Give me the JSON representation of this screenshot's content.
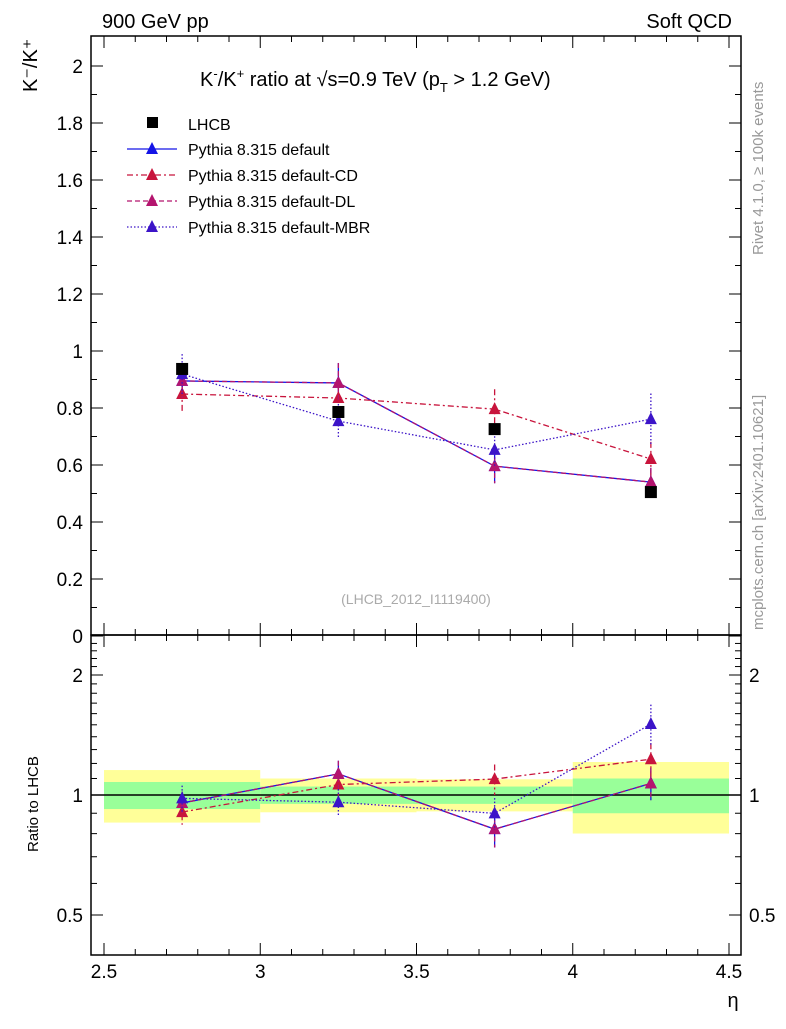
{
  "header": {
    "left": "900 GeV pp",
    "right": "Soft QCD"
  },
  "side": {
    "top": "Rivet 4.1.0, ≥ 100k events",
    "bottom": "mcplots.cern.ch [arXiv:2401.10621]"
  },
  "chart_data": [
    {
      "type": "line",
      "title": "K⁻/K⁺ ratio at √s=0.9 TeV (pT > 1.2 GeV)",
      "title_parts": {
        "a": "K",
        "b": "-",
        "c": "/K",
        "d": "+",
        "e": " ratio at ",
        "f": "√",
        "g": "s=0.9 TeV (p",
        "h": "T",
        "i": " > 1.2 GeV)"
      },
      "ylabel": "K⁻/K⁺",
      "ylabel_parts": {
        "a": "K",
        "b": "-",
        "c": "/K",
        "d": "+"
      },
      "xlabel": "η",
      "xlim": [
        2.5,
        4.5
      ],
      "ylim": [
        0,
        2.1
      ],
      "yticks": [
        0,
        0.2,
        0.4,
        0.6,
        0.8,
        1,
        1.2,
        1.4,
        1.6,
        1.8,
        2
      ],
      "yticklabels": [
        "0",
        "0.2",
        "0.4",
        "0.6",
        "0.8",
        "1",
        "1.2",
        "1.4",
        "1.6",
        "1.8",
        "2"
      ],
      "annotation": "(LHCB_2012_I1119400)",
      "legend_position": "top-left",
      "x": [
        2.75,
        3.25,
        3.75,
        4.25
      ],
      "data": {
        "name": "LHCB",
        "values": [
          0.937,
          0.786,
          0.726,
          0.505
        ],
        "stat_rel": [
          0.078,
          0.05,
          0.05,
          0.1
        ],
        "total_rel": [
          0.155,
          0.1,
          0.095,
          0.21
        ]
      },
      "series": [
        {
          "name": "Pythia 8.315 default",
          "color": "#1414e6",
          "dash": "",
          "values": [
            0.895,
            0.888,
            0.596,
            0.54
          ],
          "err": [
            0.06,
            0.07,
            0.06,
            0.05
          ]
        },
        {
          "name": "Pythia 8.315 default-CD",
          "color": "#c8143c",
          "dash": "6,3,2,3",
          "values": [
            0.849,
            0.835,
            0.796,
            0.621
          ],
          "err": [
            0.06,
            0.07,
            0.07,
            0.06
          ]
        },
        {
          "name": "Pythia 8.315 default-DL",
          "color": "#b4146e",
          "dash": "5,3",
          "values": [
            0.895,
            0.888,
            0.596,
            0.54
          ],
          "err": [
            0.06,
            0.07,
            0.06,
            0.05
          ]
        },
        {
          "name": "Pythia 8.315 default-MBR",
          "color": "#3c14c8",
          "dash": "1.5,2",
          "values": [
            0.919,
            0.754,
            0.653,
            0.761
          ],
          "err": [
            0.07,
            0.06,
            0.06,
            0.09
          ]
        }
      ]
    },
    {
      "type": "line",
      "ylabel": "Ratio to LHCB",
      "yscale": "log",
      "ylim": [
        0.4,
        2.5
      ],
      "yticks": [
        0.5,
        1,
        2
      ],
      "yticklabels": [
        "0.5",
        "1",
        "2"
      ],
      "xticks": [
        2.5,
        3,
        3.5,
        4,
        4.5
      ],
      "xticklabels": [
        "2.5",
        "3",
        "3.5",
        "4",
        "4.5"
      ],
      "band_colors": {
        "total": "#ffff99",
        "stat": "#99ff99"
      }
    }
  ]
}
